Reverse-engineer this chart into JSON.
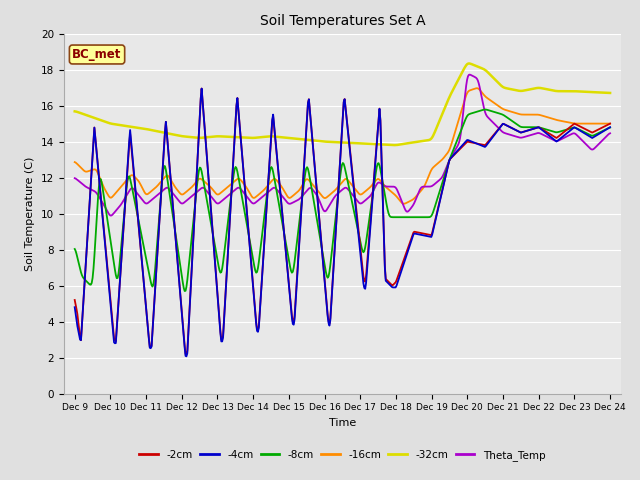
{
  "title": "Soil Temperatures Set A",
  "xlabel": "Time",
  "ylabel": "Soil Temperature (C)",
  "ylim": [
    0,
    20
  ],
  "xlim": [
    -0.3,
    15.3
  ],
  "background_color": "#e0e0e0",
  "plot_bg_color": "#e8e8e8",
  "grid_color": "#ffffff",
  "annotation_text": "BC_met",
  "annotation_bg": "#ffff99",
  "annotation_border": "#8B4513",
  "annotation_text_color": "#8B0000",
  "series": {
    "cm2": {
      "label": "-2cm",
      "color": "#cc0000",
      "lw": 1.3
    },
    "cm4": {
      "label": "-4cm",
      "color": "#0000cc",
      "lw": 1.3
    },
    "cm8": {
      "label": "-8cm",
      "color": "#00aa00",
      "lw": 1.3
    },
    "cm16": {
      "label": "-16cm",
      "color": "#ff8c00",
      "lw": 1.3
    },
    "cm32": {
      "label": "-32cm",
      "color": "#dddd00",
      "lw": 1.8
    },
    "theta": {
      "label": "Theta_Temp",
      "color": "#aa00cc",
      "lw": 1.3
    }
  },
  "xtick_labels": [
    "Dec 9",
    "Dec 10",
    "Dec 11",
    "Dec 12",
    "Dec 13",
    "Dec 14",
    "Dec 15",
    "Dec 16",
    "Dec 17",
    "Dec 18",
    "Dec 19",
    "Dec 20",
    "Dec 21",
    "Dec 22",
    "Dec 23",
    "Dec 24"
  ],
  "ytick_vals": [
    0,
    2,
    4,
    6,
    8,
    10,
    12,
    14,
    16,
    18,
    20
  ],
  "cm32_pts": [
    [
      0,
      15.7
    ],
    [
      1,
      15.0
    ],
    [
      2,
      14.7
    ],
    [
      3,
      14.3
    ],
    [
      3.5,
      14.2
    ],
    [
      4,
      14.3
    ],
    [
      5,
      14.2
    ],
    [
      5.5,
      14.3
    ],
    [
      6,
      14.2
    ],
    [
      7,
      14.0
    ],
    [
      8,
      13.9
    ],
    [
      8.5,
      13.85
    ],
    [
      9,
      13.8
    ],
    [
      9.3,
      13.9
    ],
    [
      9.8,
      14.05
    ],
    [
      10,
      14.1
    ],
    [
      10.5,
      16.5
    ],
    [
      11,
      18.4
    ],
    [
      11.5,
      18.0
    ],
    [
      12,
      17.0
    ],
    [
      12.5,
      16.8
    ],
    [
      13,
      17.0
    ],
    [
      13.5,
      16.8
    ],
    [
      14,
      16.8
    ],
    [
      15,
      16.7
    ]
  ],
  "cm16_pts": [
    [
      0,
      12.9
    ],
    [
      0.3,
      12.3
    ],
    [
      0.6,
      12.5
    ],
    [
      0.8,
      11.5
    ],
    [
      1,
      10.8
    ],
    [
      1.3,
      11.5
    ],
    [
      1.6,
      12.2
    ],
    [
      1.8,
      11.8
    ],
    [
      2,
      11.0
    ],
    [
      2.3,
      11.5
    ],
    [
      2.6,
      12.2
    ],
    [
      2.8,
      11.5
    ],
    [
      3,
      11.0
    ],
    [
      3.3,
      11.5
    ],
    [
      3.5,
      12.0
    ],
    [
      3.8,
      11.5
    ],
    [
      4,
      11.0
    ],
    [
      4.3,
      11.5
    ],
    [
      4.6,
      12.0
    ],
    [
      4.8,
      11.5
    ],
    [
      5,
      10.8
    ],
    [
      5.3,
      11.3
    ],
    [
      5.6,
      12.0
    ],
    [
      5.8,
      11.5
    ],
    [
      6,
      10.8
    ],
    [
      6.3,
      11.3
    ],
    [
      6.5,
      12.0
    ],
    [
      6.8,
      11.3
    ],
    [
      7,
      10.8
    ],
    [
      7.3,
      11.3
    ],
    [
      7.6,
      12.0
    ],
    [
      7.8,
      11.5
    ],
    [
      8,
      11.0
    ],
    [
      8.3,
      11.5
    ],
    [
      8.5,
      12.0
    ],
    [
      8.7,
      11.5
    ],
    [
      9,
      11.0
    ],
    [
      9.2,
      10.5
    ],
    [
      9.5,
      10.8
    ],
    [
      9.8,
      11.5
    ],
    [
      10,
      12.5
    ],
    [
      10.3,
      13.0
    ],
    [
      10.5,
      13.5
    ],
    [
      11,
      16.8
    ],
    [
      11.3,
      17.0
    ],
    [
      11.5,
      16.5
    ],
    [
      12,
      15.8
    ],
    [
      12.5,
      15.5
    ],
    [
      13,
      15.5
    ],
    [
      13.5,
      15.2
    ],
    [
      14,
      15.0
    ],
    [
      15,
      15.0
    ]
  ],
  "theta_pts": [
    [
      0,
      12.0
    ],
    [
      0.3,
      11.5
    ],
    [
      0.6,
      11.2
    ],
    [
      0.9,
      10.2
    ],
    [
      1,
      9.8
    ],
    [
      1.3,
      10.5
    ],
    [
      1.6,
      11.5
    ],
    [
      1.8,
      11.0
    ],
    [
      2,
      10.5
    ],
    [
      2.3,
      11.0
    ],
    [
      2.6,
      11.5
    ],
    [
      2.8,
      11.0
    ],
    [
      3,
      10.5
    ],
    [
      3.3,
      11.0
    ],
    [
      3.6,
      11.5
    ],
    [
      3.8,
      11.0
    ],
    [
      4,
      10.5
    ],
    [
      4.3,
      11.0
    ],
    [
      4.6,
      11.5
    ],
    [
      4.8,
      11.0
    ],
    [
      5,
      10.5
    ],
    [
      5.3,
      11.0
    ],
    [
      5.6,
      11.5
    ],
    [
      5.8,
      11.0
    ],
    [
      6,
      10.5
    ],
    [
      6.3,
      10.8
    ],
    [
      6.6,
      11.5
    ],
    [
      6.8,
      11.0
    ],
    [
      7,
      10.0
    ],
    [
      7.3,
      11.0
    ],
    [
      7.6,
      11.5
    ],
    [
      7.8,
      11.0
    ],
    [
      8,
      10.5
    ],
    [
      8.3,
      11.0
    ],
    [
      8.5,
      11.8
    ],
    [
      8.7,
      11.5
    ],
    [
      9,
      11.5
    ],
    [
      9.2,
      10.5
    ],
    [
      9.3,
      10.0
    ],
    [
      9.5,
      10.5
    ],
    [
      9.7,
      11.5
    ],
    [
      9.9,
      11.5
    ],
    [
      10,
      11.5
    ],
    [
      10.3,
      12.0
    ],
    [
      10.5,
      13.0
    ],
    [
      10.8,
      14.0
    ],
    [
      11,
      17.8
    ],
    [
      11.3,
      17.5
    ],
    [
      11.5,
      15.5
    ],
    [
      12,
      14.5
    ],
    [
      12.5,
      14.2
    ],
    [
      13,
      14.5
    ],
    [
      13.5,
      14.0
    ],
    [
      14,
      14.5
    ],
    [
      14.5,
      13.5
    ],
    [
      15,
      14.5
    ]
  ]
}
